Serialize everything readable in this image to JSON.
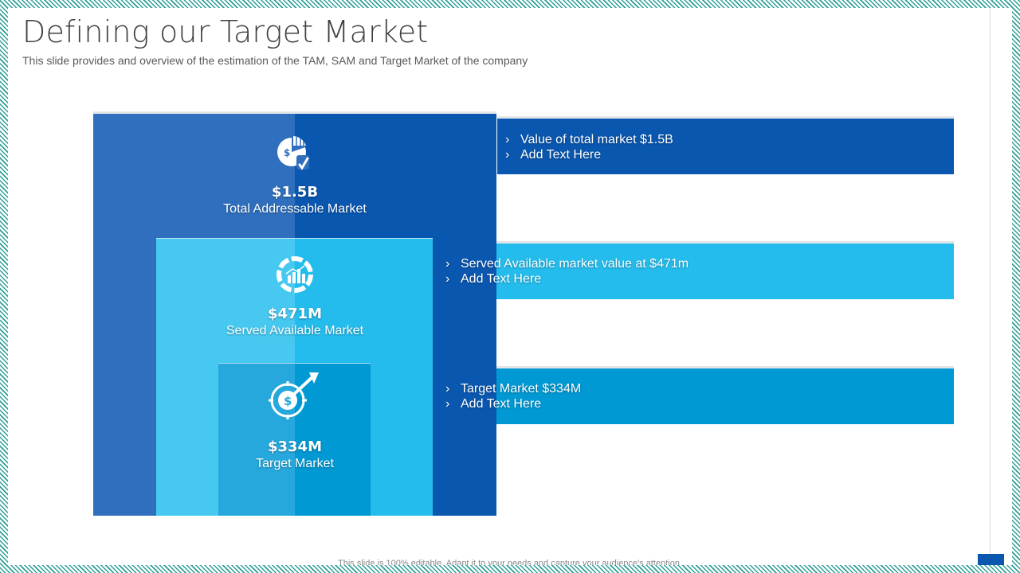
{
  "title": "Defining our Target Market",
  "subtitle": "This slide provides and overview of the estimation of the TAM, SAM and Target Market of the company",
  "footer": "This slide is 100% editable. Adapt it to your needs and capture your audience's attention.",
  "colors": {
    "tam": "#0a57b0",
    "tam_shade": "#2f6fbd",
    "sam": "#24bcec",
    "sam_shade": "#46c8f0",
    "target": "#0199d3",
    "target_shade": "#27a8dd"
  },
  "markets": [
    {
      "value": "$1.5B",
      "label": "Total Addressable Market",
      "icon": "pie-chart-money-icon",
      "bullets": [
        "Value of total market $1.5B",
        "Add Text Here"
      ]
    },
    {
      "value": "$471M",
      "label": "Served Available Market",
      "icon": "bar-chart-donut-icon",
      "bullets": [
        "Served Available market value  at $471m",
        "Add Text Here"
      ]
    },
    {
      "value": "$334M",
      "label": "Target Market",
      "icon": "dollar-target-arrow-icon",
      "bullets": [
        "Target Market $334M",
        "Add Text Here"
      ]
    }
  ],
  "bullet_glyph": "›"
}
